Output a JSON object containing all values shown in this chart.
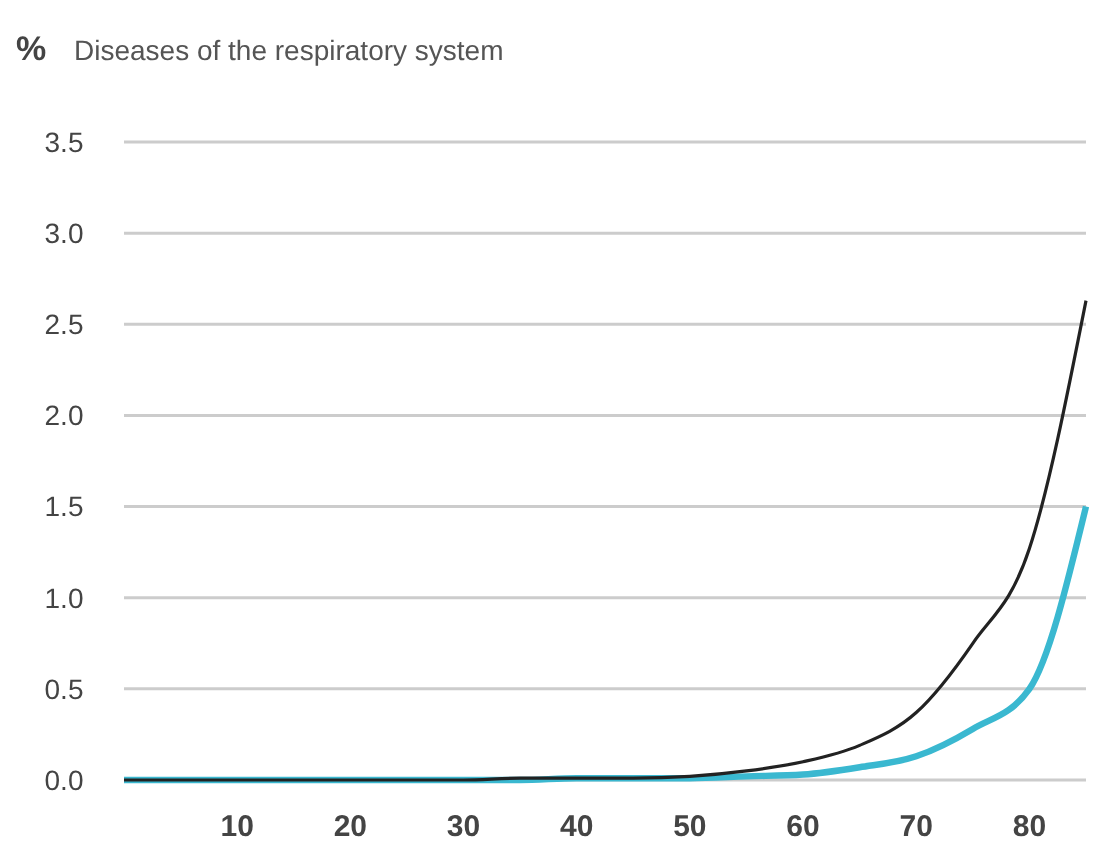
{
  "chart_data": {
    "type": "line",
    "title": "Diseases of the respiratory system",
    "ylabel": "%",
    "x": [
      0,
      5,
      10,
      15,
      20,
      25,
      30,
      35,
      40,
      45,
      50,
      55,
      60,
      65,
      70,
      75,
      80,
      85
    ],
    "series": [
      {
        "color": "#222222",
        "values": [
          0,
          0,
          0,
          0,
          0,
          0,
          0,
          0.01,
          0.01,
          0.01,
          0.02,
          0.05,
          0.1,
          0.19,
          0.37,
          0.75,
          1.27,
          2.63
        ]
      },
      {
        "color": "#3ab8d0",
        "values": [
          0,
          0,
          0,
          0,
          0,
          0,
          0,
          0,
          0.01,
          0.01,
          0.01,
          0.02,
          0.03,
          0.07,
          0.13,
          0.28,
          0.5,
          1.5
        ]
      }
    ],
    "xlim": [
      0,
      85
    ],
    "xticks": [
      10,
      20,
      30,
      40,
      50,
      60,
      70,
      80
    ],
    "ylim": [
      0,
      3.5
    ],
    "yticks": [
      {
        "value": 0,
        "label": "0.0"
      },
      {
        "value": 0.5,
        "label": "0.5"
      },
      {
        "value": 1,
        "label": "1.0"
      },
      {
        "value": 1.5,
        "label": "1.5"
      },
      {
        "value": 2,
        "label": "2.0"
      },
      {
        "value": 2.5,
        "label": "2.5"
      },
      {
        "value": 3,
        "label": "3.0"
      },
      {
        "value": 3.5,
        "label": "3.5"
      }
    ],
    "grid": "y",
    "marker": "none",
    "line_style": "solid"
  }
}
